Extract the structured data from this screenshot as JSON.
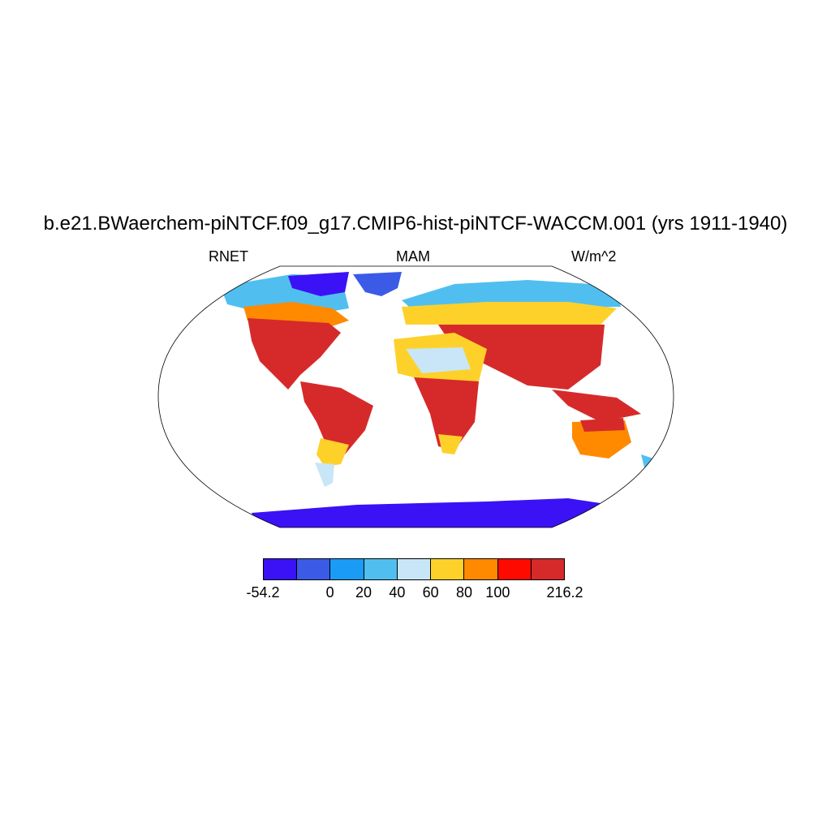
{
  "title": "b.e21.BWaerchem-piNTCF.f09_g17.CMIP6-hist-piNTCF-WACCM.001 (yrs 1911-1940)",
  "left_label": "RNET",
  "center_label": "MAM",
  "right_label": "W/m^2",
  "colorbar": {
    "colors": [
      "#3a12f5",
      "#3b5be6",
      "#1a9bf5",
      "#50bff0",
      "#c8e6f7",
      "#fdd12a",
      "#ff8a00",
      "#ff0a00",
      "#d62a2a"
    ],
    "ticks": [
      "-54.2",
      "0",
      "20",
      "40",
      "60",
      "80",
      "100",
      "216.2"
    ]
  },
  "map": {
    "projection": "Robinson",
    "variable": "RNET",
    "season": "MAM",
    "units": "W/m^2",
    "ocean_color": "#ffffff",
    "regions": [
      {
        "name": "antarctica",
        "level": "-54.2 to 0"
      },
      {
        "name": "greenland",
        "level": "-54.2 to 0"
      },
      {
        "name": "sahara",
        "level": "40 to 80"
      },
      {
        "name": "tropics",
        "level": "100 to 216.2"
      },
      {
        "name": "siberia",
        "level": "0 to 60"
      }
    ]
  }
}
